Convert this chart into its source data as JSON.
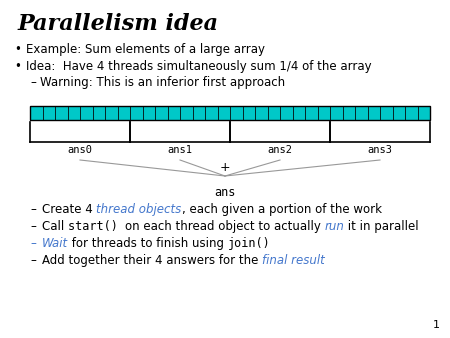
{
  "title": "Parallelism idea",
  "bullet1": "Example: Sum elements of a large array",
  "bullet2": "Idea:  Have 4 threads simultaneously sum 1/4 of the array",
  "sub_bullet": "Warning: This is an inferior first approach",
  "array_color": "#00C8C8",
  "n_cells": 32,
  "ans_labels": [
    "ans0",
    "ans1",
    "ans2",
    "ans3"
  ],
  "page_num": "1",
  "background_color": "#ffffff",
  "blue_color": "#4477CC",
  "text_color": "#000000"
}
